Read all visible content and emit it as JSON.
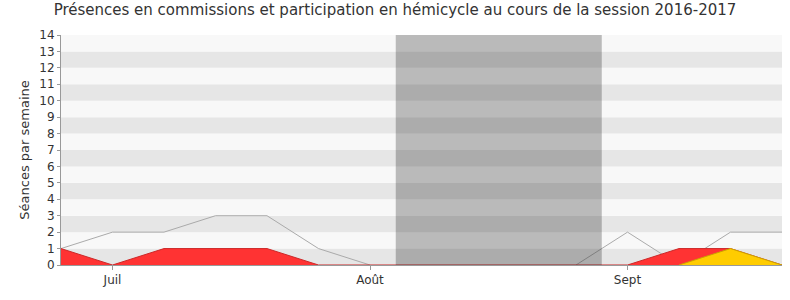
{
  "chart_data": {
    "type": "area",
    "title": "Présences en commissions et participation en hémicycle au cours de la session 2016-2017",
    "y_label": "Séances par semaine",
    "categories": [
      null,
      "Juil",
      null,
      null,
      null,
      null,
      "Août",
      null,
      null,
      null,
      null,
      "Sept",
      null,
      null,
      null
    ],
    "series": [
      {
        "type": "line",
        "color": "#aaaaaa",
        "values": [
          1,
          2,
          2,
          3,
          3,
          1,
          0,
          null,
          null,
          null,
          0,
          2,
          0,
          2,
          2
        ]
      },
      {
        "type": "area",
        "color": "#ff3333",
        "values": [
          1,
          0,
          1,
          1,
          1,
          0,
          0,
          0,
          0,
          0,
          0,
          0,
          1,
          1,
          0
        ]
      },
      {
        "type": "area",
        "color": "#ffcc00",
        "values": [
          null,
          null,
          null,
          null,
          null,
          null,
          null,
          null,
          null,
          null,
          null,
          null,
          0,
          1,
          0
        ]
      }
    ],
    "shaded_range": [
      6.5,
      10.5
    ],
    "ylim": [
      0,
      14
    ],
    "yticks": [
      0,
      1,
      2,
      3,
      4,
      5,
      6,
      7,
      8,
      9,
      10,
      11,
      12,
      13,
      14
    ],
    "grid": true
  }
}
